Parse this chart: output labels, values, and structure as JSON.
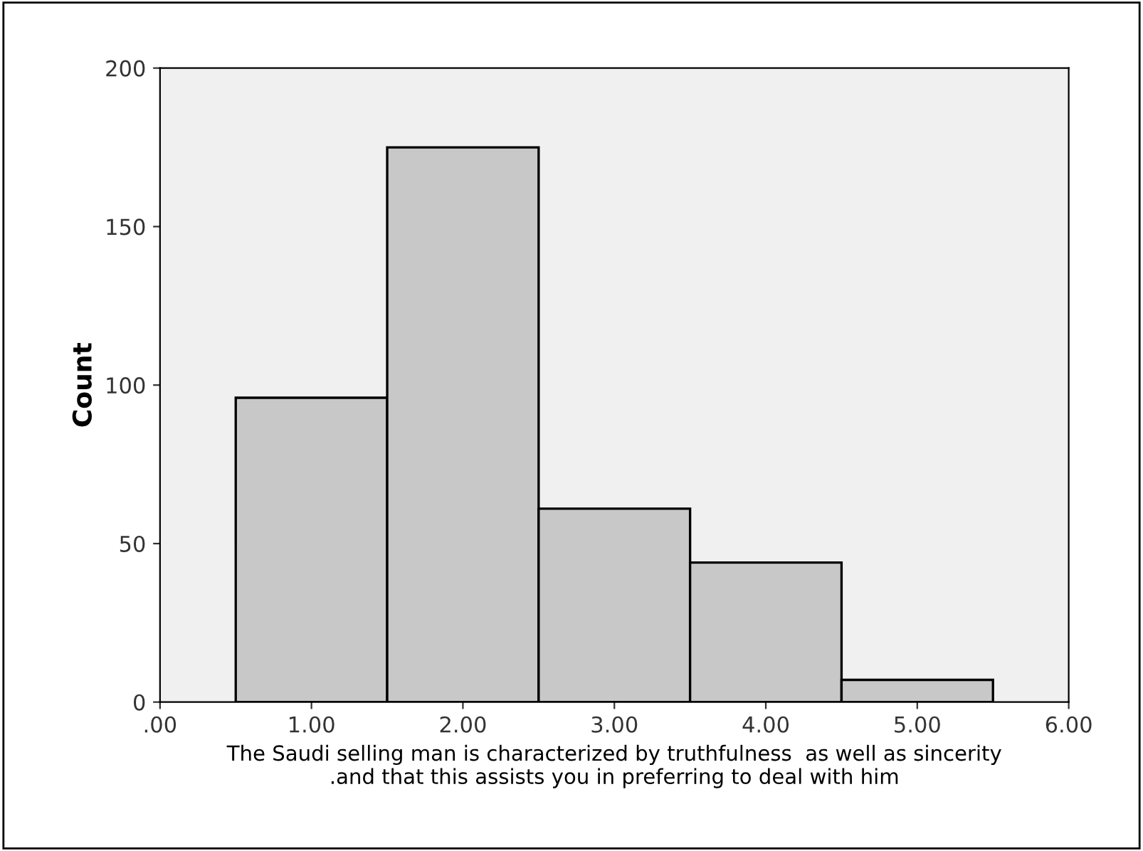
{
  "chart_data": {
    "type": "histogram",
    "bins": [
      0.5,
      1.5,
      2.5,
      3.5,
      4.5,
      5.5
    ],
    "values": [
      96,
      175,
      61,
      44,
      7
    ],
    "color": "#c8c8c8",
    "xlabel": "The Saudi selling man is characterized by truthfulness  as well as sincerity\n.and that this assists you in preferring to deal with him",
    "ylabel": "Count",
    "xlim": [
      0,
      6
    ],
    "xticks": [
      {
        "value": 0,
        "label": ".00"
      },
      {
        "value": 1,
        "label": "1.00"
      },
      {
        "value": 2,
        "label": "2.00"
      },
      {
        "value": 3,
        "label": "3.00"
      },
      {
        "value": 4,
        "label": "4.00"
      },
      {
        "value": 5,
        "label": "5.00"
      },
      {
        "value": 6,
        "label": "6.00"
      }
    ],
    "ylim": [
      0,
      200
    ],
    "yticks": [
      0,
      50,
      100,
      150,
      200
    ],
    "grid": false
  }
}
